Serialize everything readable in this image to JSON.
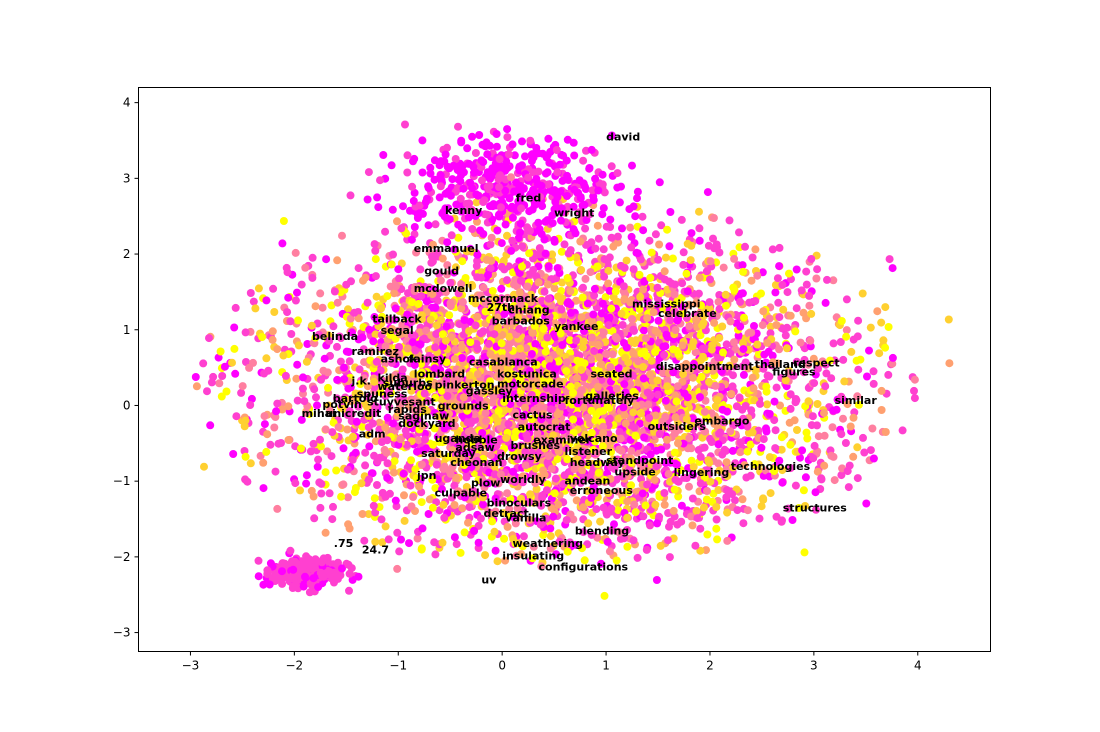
{
  "chart_data": {
    "type": "scatter",
    "title": "",
    "xlabel": "",
    "ylabel": "",
    "xlim": [
      -3.5,
      4.7
    ],
    "ylim": [
      -3.25,
      4.2
    ],
    "grid": false,
    "xticks": [
      -3,
      -2,
      -1,
      0,
      1,
      2,
      3,
      4
    ],
    "yticks": [
      -3,
      -2,
      -1,
      0,
      1,
      2,
      3,
      4
    ],
    "xtick_labels": [
      "−3",
      "−2",
      "−1",
      "0",
      "1",
      "2",
      "3",
      "4"
    ],
    "ytick_labels": [
      "−3",
      "−2",
      "−1",
      "0",
      "1",
      "2",
      "3",
      "4"
    ],
    "point_colors": [
      "#ff00ff",
      "#ff40d0",
      "#ff7fa0",
      "#ffa070",
      "#ffd030",
      "#ffff00"
    ],
    "labeled_points": [
      {
        "text": "david",
        "x": 1.0,
        "y": 3.55
      },
      {
        "text": "fred",
        "x": 0.13,
        "y": 2.75
      },
      {
        "text": "kenny",
        "x": -0.55,
        "y": 2.58
      },
      {
        "text": "wright",
        "x": 0.5,
        "y": 2.55
      },
      {
        "text": "emmanuel",
        "x": -0.85,
        "y": 2.08
      },
      {
        "text": "gould",
        "x": -0.75,
        "y": 1.78
      },
      {
        "text": "mcdowell",
        "x": -0.85,
        "y": 1.55
      },
      {
        "text": "mccormack",
        "x": -0.33,
        "y": 1.42
      },
      {
        "text": "27th",
        "x": -0.15,
        "y": 1.3
      },
      {
        "text": "chiang",
        "x": 0.06,
        "y": 1.27
      },
      {
        "text": "mississippi",
        "x": 1.25,
        "y": 1.35
      },
      {
        "text": "celebrate",
        "x": 1.5,
        "y": 1.22
      },
      {
        "text": "tailback",
        "x": -1.25,
        "y": 1.15
      },
      {
        "text": "barbados",
        "x": -0.1,
        "y": 1.12
      },
      {
        "text": "yankee",
        "x": 0.5,
        "y": 1.05
      },
      {
        "text": "segal",
        "x": -1.17,
        "y": 1.0
      },
      {
        "text": "belinda",
        "x": -1.83,
        "y": 0.92
      },
      {
        "text": "ramirez",
        "x": -1.45,
        "y": 0.72
      },
      {
        "text": "ashok",
        "x": -1.17,
        "y": 0.62
      },
      {
        "text": "fainsy",
        "x": -0.9,
        "y": 0.62
      },
      {
        "text": "casablanca",
        "x": -0.32,
        "y": 0.58
      },
      {
        "text": "disappointment",
        "x": 1.48,
        "y": 0.52
      },
      {
        "text": "thailand",
        "x": 2.43,
        "y": 0.55
      },
      {
        "text": "respect",
        "x": 2.8,
        "y": 0.57
      },
      {
        "text": "figures",
        "x": 2.6,
        "y": 0.45
      },
      {
        "text": "lombard",
        "x": -0.85,
        "y": 0.42
      },
      {
        "text": "kostunica",
        "x": -0.05,
        "y": 0.42
      },
      {
        "text": "seated",
        "x": 0.85,
        "y": 0.42
      },
      {
        "text": "kilda",
        "x": -1.2,
        "y": 0.37
      },
      {
        "text": "j.k.",
        "x": -1.45,
        "y": 0.33
      },
      {
        "text": "suburbs",
        "x": -1.15,
        "y": 0.3
      },
      {
        "text": "waterloo",
        "x": -1.2,
        "y": 0.26
      },
      {
        "text": "pinkerton",
        "x": -0.65,
        "y": 0.28
      },
      {
        "text": "motorcade",
        "x": -0.05,
        "y": 0.29
      },
      {
        "text": "gassley",
        "x": -0.35,
        "y": 0.2
      },
      {
        "text": "spuness",
        "x": -1.4,
        "y": 0.16
      },
      {
        "text": "bartolo",
        "x": -1.63,
        "y": 0.1
      },
      {
        "text": "potvin",
        "x": -1.73,
        "y": 0.02
      },
      {
        "text": "stuyvesant",
        "x": -1.3,
        "y": 0.05
      },
      {
        "text": "galleries",
        "x": 0.8,
        "y": 0.13
      },
      {
        "text": "internship",
        "x": 0.0,
        "y": 0.1
      },
      {
        "text": "fortunately",
        "x": 0.6,
        "y": 0.07
      },
      {
        "text": "mihai",
        "x": -1.93,
        "y": -0.1
      },
      {
        "text": "unicredit",
        "x": -1.7,
        "y": -0.1
      },
      {
        "text": "rapids",
        "x": -1.1,
        "y": -0.05
      },
      {
        "text": "grounds",
        "x": -0.62,
        "y": 0.0
      },
      {
        "text": "similar",
        "x": 3.2,
        "y": 0.07
      },
      {
        "text": "saginaw",
        "x": -1.0,
        "y": -0.13
      },
      {
        "text": "cactus",
        "x": 0.1,
        "y": -0.12
      },
      {
        "text": "embargo",
        "x": 1.85,
        "y": -0.2
      },
      {
        "text": "dockyard",
        "x": -1.0,
        "y": -0.23
      },
      {
        "text": "outsiders",
        "x": 1.4,
        "y": -0.27
      },
      {
        "text": "autocrat",
        "x": 0.15,
        "y": -0.28
      },
      {
        "text": "adm",
        "x": -1.38,
        "y": -0.37
      },
      {
        "text": "uganda",
        "x": -0.65,
        "y": -0.43
      },
      {
        "text": "hobble",
        "x": -0.45,
        "y": -0.45
      },
      {
        "text": "brushes",
        "x": 0.08,
        "y": -0.52
      },
      {
        "text": "examiner",
        "x": 0.3,
        "y": -0.45
      },
      {
        "text": "volcano",
        "x": 0.65,
        "y": -0.43
      },
      {
        "text": "adsaw",
        "x": -0.45,
        "y": -0.55
      },
      {
        "text": "saturday",
        "x": -0.78,
        "y": -0.63
      },
      {
        "text": "listener",
        "x": 0.6,
        "y": -0.6
      },
      {
        "text": "drowsy",
        "x": -0.05,
        "y": -0.67
      },
      {
        "text": "cheonan",
        "x": -0.5,
        "y": -0.75
      },
      {
        "text": "headway",
        "x": 0.65,
        "y": -0.75
      },
      {
        "text": "standpoint",
        "x": 1.0,
        "y": -0.72
      },
      {
        "text": "upside",
        "x": 1.08,
        "y": -0.87
      },
      {
        "text": "lingering",
        "x": 1.65,
        "y": -0.88
      },
      {
        "text": "technologies",
        "x": 2.2,
        "y": -0.8
      },
      {
        "text": "jpn",
        "x": -0.82,
        "y": -0.92
      },
      {
        "text": "worldly",
        "x": -0.02,
        "y": -0.97
      },
      {
        "text": "andean",
        "x": 0.6,
        "y": -0.99
      },
      {
        "text": "plow",
        "x": -0.3,
        "y": -1.02
      },
      {
        "text": "erroneous",
        "x": 0.65,
        "y": -1.12
      },
      {
        "text": "culpable",
        "x": -0.65,
        "y": -1.15
      },
      {
        "text": "binoculars",
        "x": -0.15,
        "y": -1.28
      },
      {
        "text": "structures",
        "x": 2.7,
        "y": -1.35
      },
      {
        "text": "detract",
        "x": -0.18,
        "y": -1.42
      },
      {
        "text": "vanilla",
        "x": 0.03,
        "y": -1.48
      },
      {
        "text": "blending",
        "x": 0.7,
        "y": -1.65
      },
      {
        "text": "weathering",
        "x": 0.1,
        "y": -1.82
      },
      {
        "text": ".75",
        "x": -1.62,
        "y": -1.82
      },
      {
        "text": "24.7",
        "x": -1.35,
        "y": -1.9
      },
      {
        "text": "insulating",
        "x": 0.0,
        "y": -1.98
      },
      {
        "text": "configurations",
        "x": 0.35,
        "y": -2.13
      },
      {
        "text": "uv",
        "x": -0.2,
        "y": -2.3
      }
    ]
  }
}
